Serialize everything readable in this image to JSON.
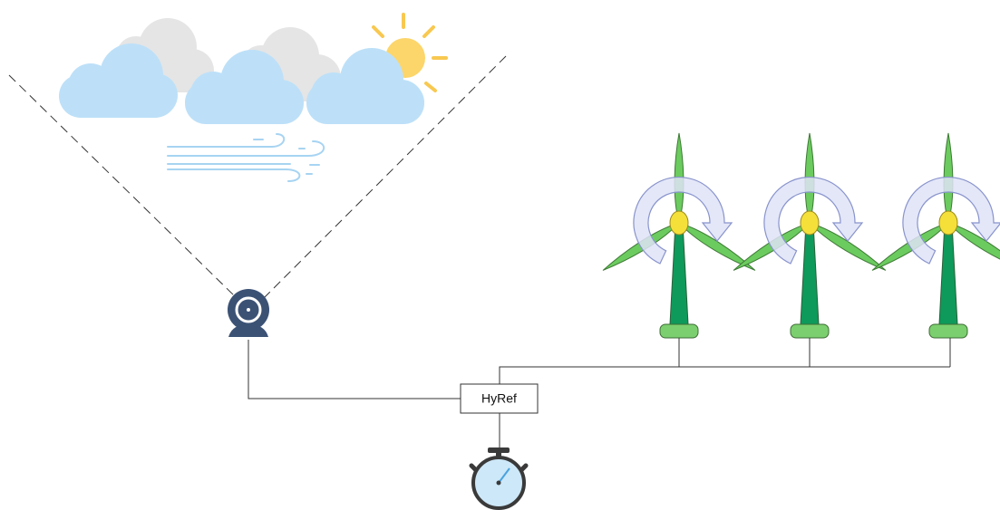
{
  "controller": {
    "label": "HyRef"
  }
}
